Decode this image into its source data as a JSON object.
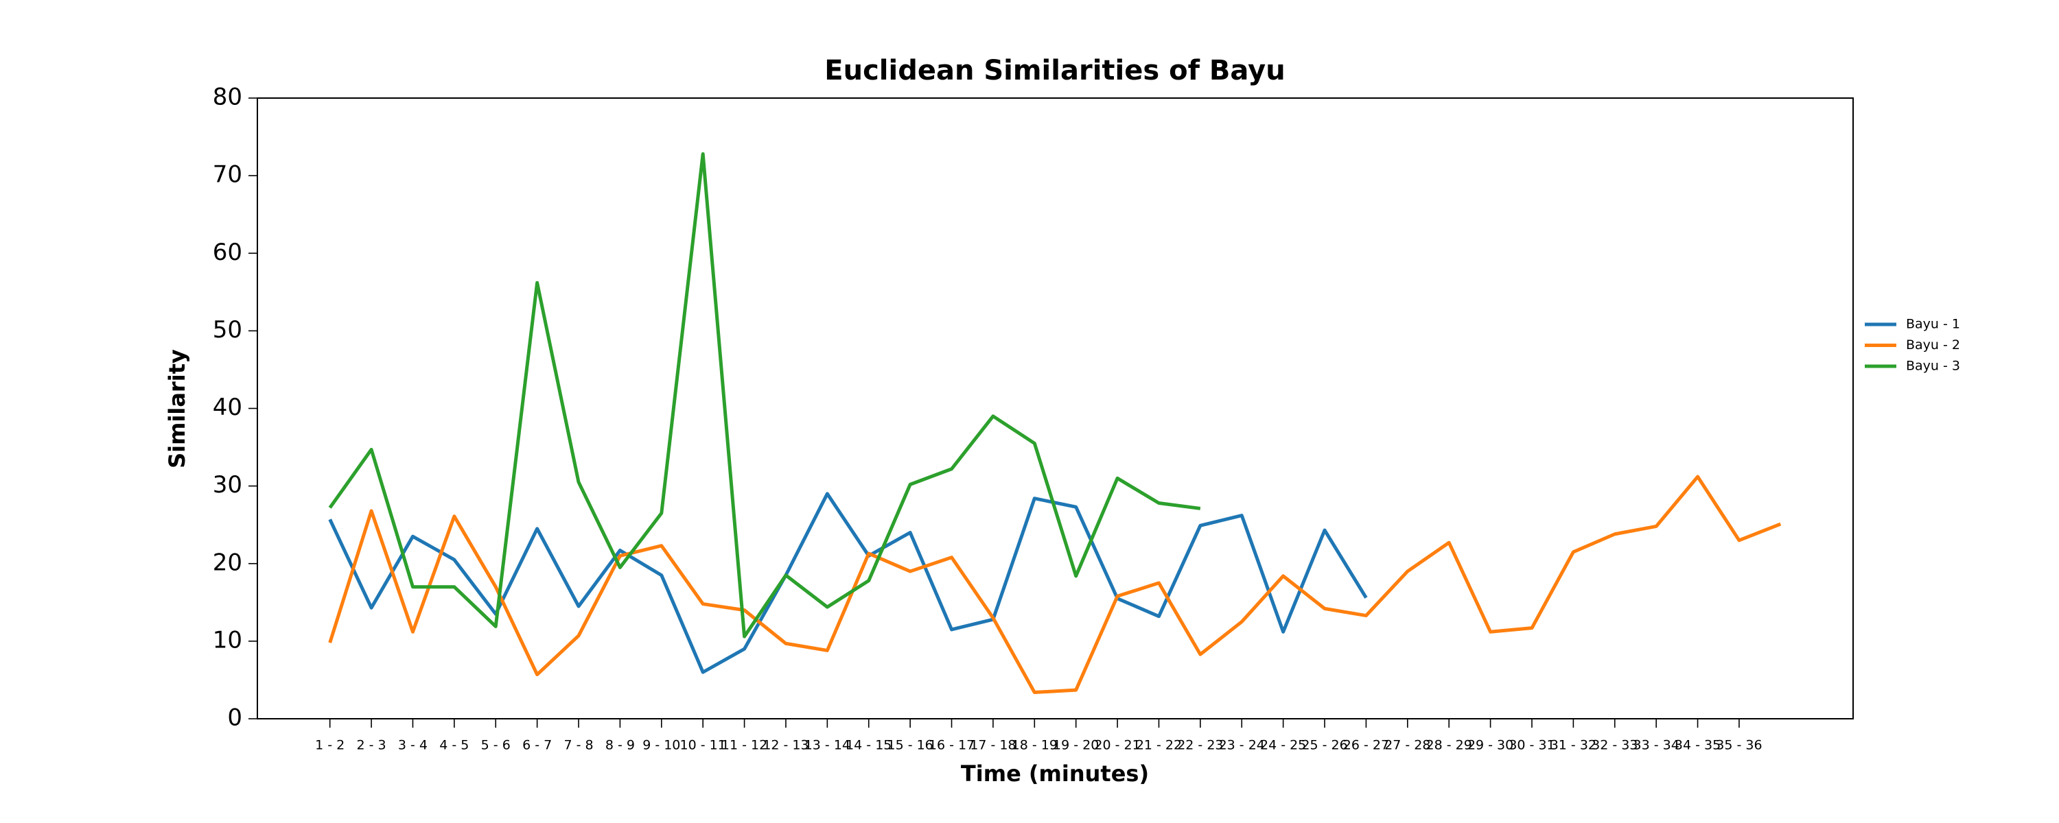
{
  "chart_data": {
    "type": "line",
    "title": "Euclidean Similarities of Bayu",
    "xlabel": "Time (minutes)",
    "ylabel": "Similarity",
    "categories": [
      "1 - 2",
      "2 - 3",
      "3 - 4",
      "4 - 5",
      "5 - 6",
      "6 - 7",
      "7 - 8",
      "8 - 9",
      "9 - 10",
      "10 - 11",
      "11 - 12",
      "12 - 13",
      "13 - 14",
      "14 - 15",
      "15 - 16",
      "16 - 17",
      "17 - 18",
      "18 - 19",
      "19 - 20",
      "20 - 21",
      "21 - 22",
      "22 - 23",
      "23 - 24",
      "24 - 25",
      "25 - 26",
      "26 - 27",
      "27 - 28",
      "28 - 29",
      "29 - 30",
      "30 - 31",
      "31 - 32",
      "32 - 33",
      "33 - 34",
      "34 - 35",
      "35 - 36",
      null
    ],
    "series": [
      {
        "name": "Bayu - 1",
        "color": "#1f77b4",
        "values": [
          25.7,
          14.3,
          23.5,
          20.5,
          13.5,
          24.5,
          14.5,
          21.7,
          18.5,
          6,
          9,
          18.5,
          29,
          21,
          24,
          11.5,
          12.8,
          28.4,
          27.3,
          15.5,
          13.2,
          24.9,
          26.2,
          11.2,
          24.3,
          15.6,
          null,
          null,
          null,
          null,
          null,
          null,
          null,
          null,
          null,
          null
        ]
      },
      {
        "name": "Bayu - 2",
        "color": "#ff7f0e",
        "values": [
          9.8,
          26.8,
          11.2,
          26.1,
          17,
          5.7,
          10.7,
          21,
          22.3,
          14.8,
          14,
          9.7,
          8.8,
          21.3,
          19,
          20.8,
          13,
          3.4,
          3.7,
          15.8,
          17.5,
          8.3,
          12.5,
          18.4,
          14.2,
          13.3,
          19,
          22.7,
          11.2,
          11.7,
          21.5,
          23.8,
          24.8,
          31.2,
          23,
          25.1
        ]
      },
      {
        "name": "Bayu - 3",
        "color": "#2ca02c",
        "values": [
          27.2,
          34.7,
          17,
          17,
          11.9,
          56.2,
          30.5,
          19.5,
          26.5,
          72.8,
          10.6,
          18.5,
          14.4,
          17.8,
          30.2,
          32.2,
          39,
          35.5,
          18.4,
          31,
          27.8,
          27.1,
          null,
          null,
          null,
          null,
          null,
          null,
          null,
          null,
          null,
          null,
          null,
          null,
          null,
          null
        ]
      }
    ],
    "ylim": [
      0,
      80
    ],
    "yticks": [
      0,
      10,
      20,
      30,
      40,
      50,
      60,
      70,
      80
    ],
    "legend": "right"
  }
}
